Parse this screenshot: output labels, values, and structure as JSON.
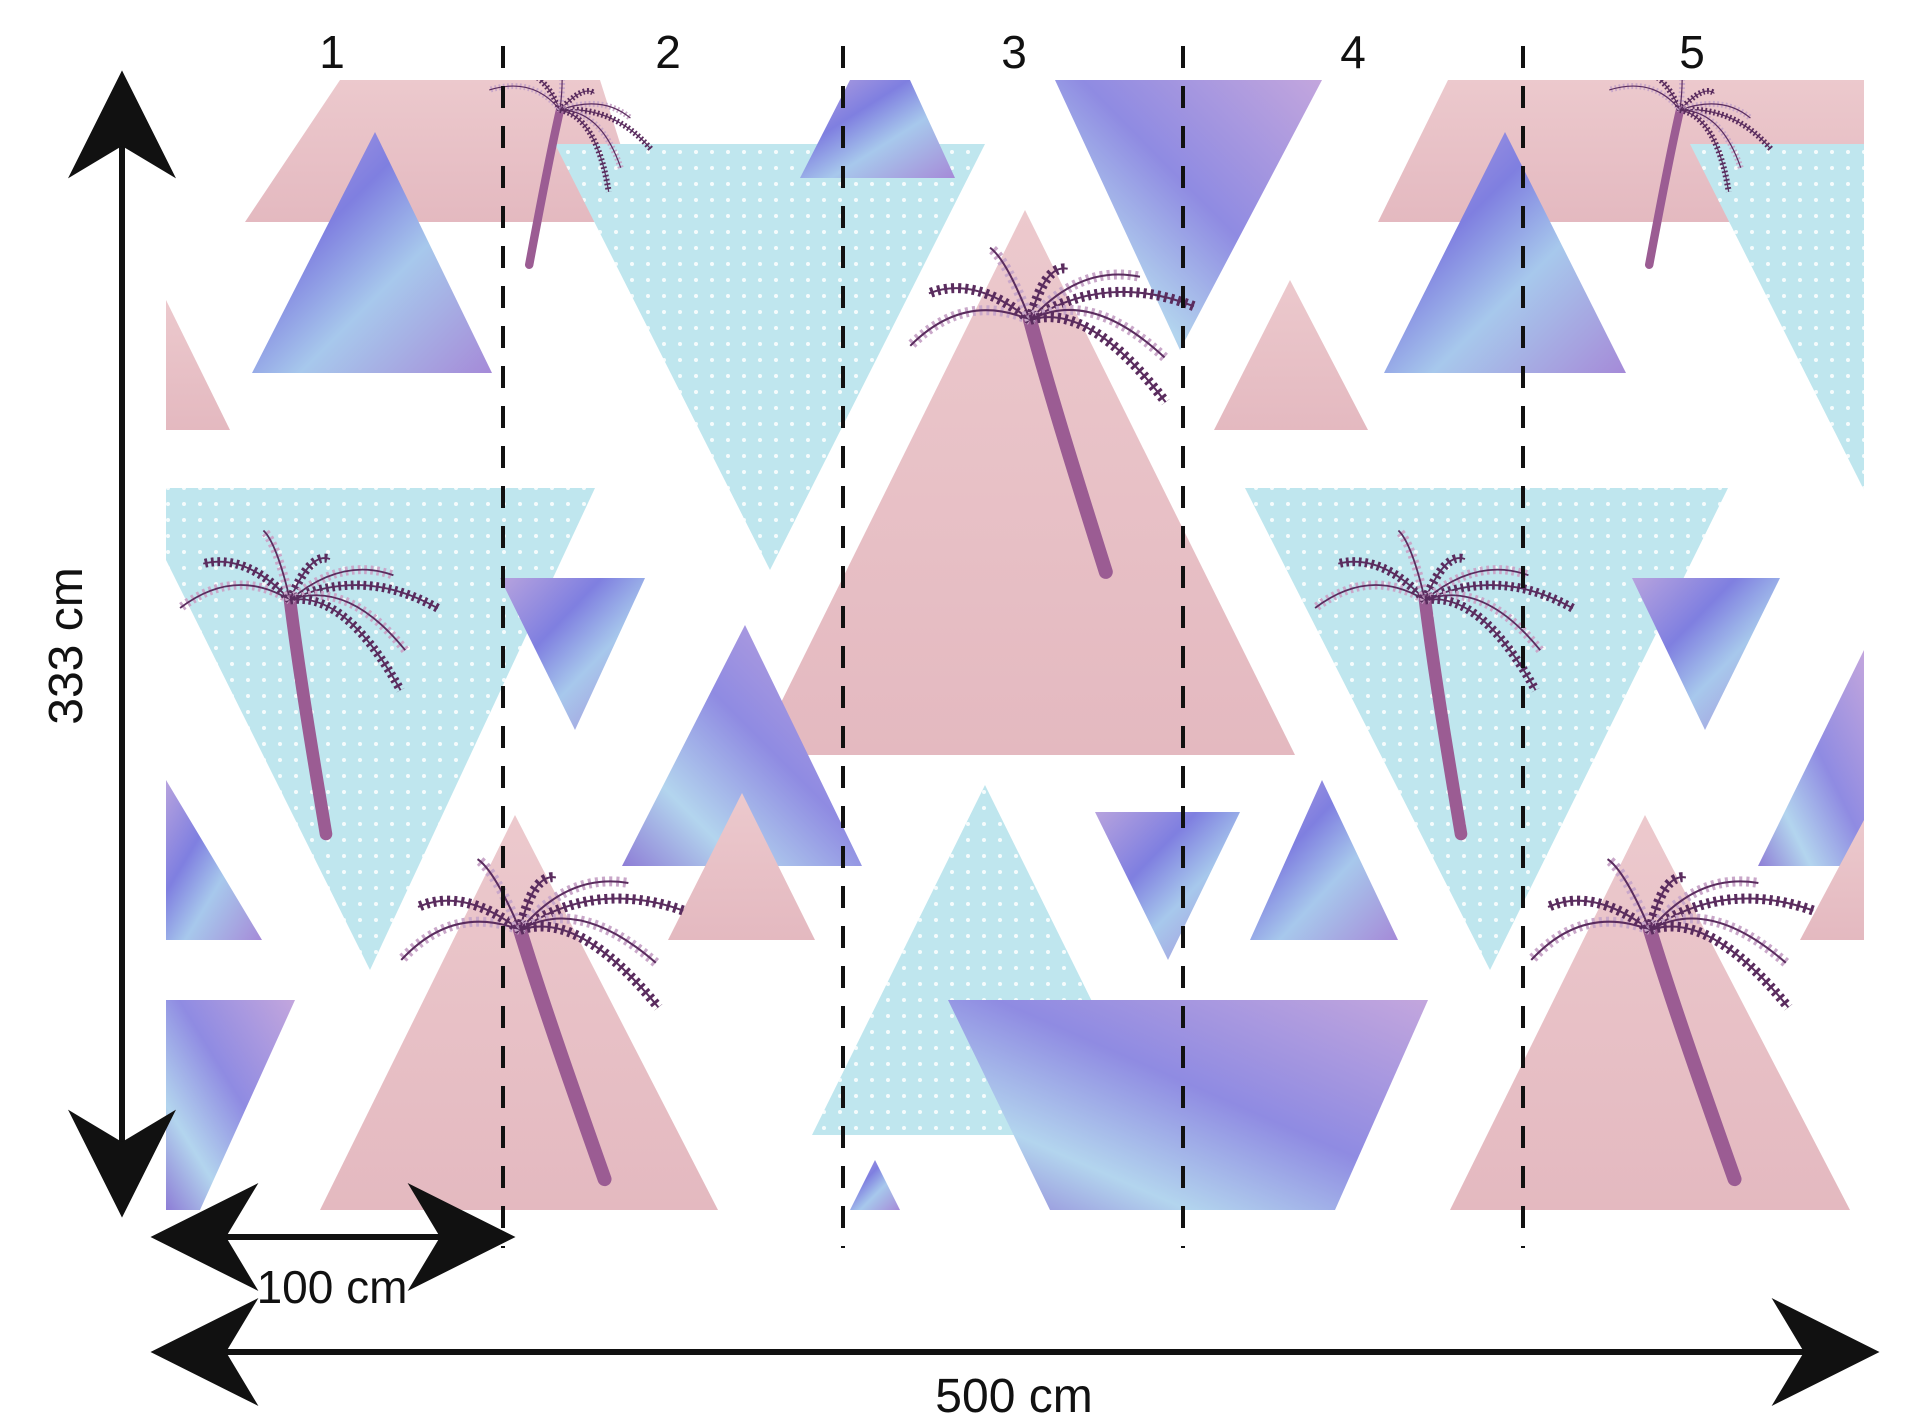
{
  "mural": {
    "panels": [
      "1",
      "2",
      "3",
      "4",
      "5"
    ],
    "panel_width_label": "100 cm",
    "total_width_label": "500 cm",
    "height_label": "333 cm"
  },
  "colors": {
    "pink": "#e8c3c8",
    "light_blue": "#bfe6ee",
    "marble_blue": "#8b86d8",
    "marble_purple": "#b79ad9",
    "palm_dark": "#5a2c5e",
    "palm_mid": "#9b5c93",
    "palm_light": "#c9a7c9",
    "ink": "#111111"
  },
  "icons": {
    "dimension_arrow": "double-headed-arrow",
    "motif": "palm-tree"
  }
}
